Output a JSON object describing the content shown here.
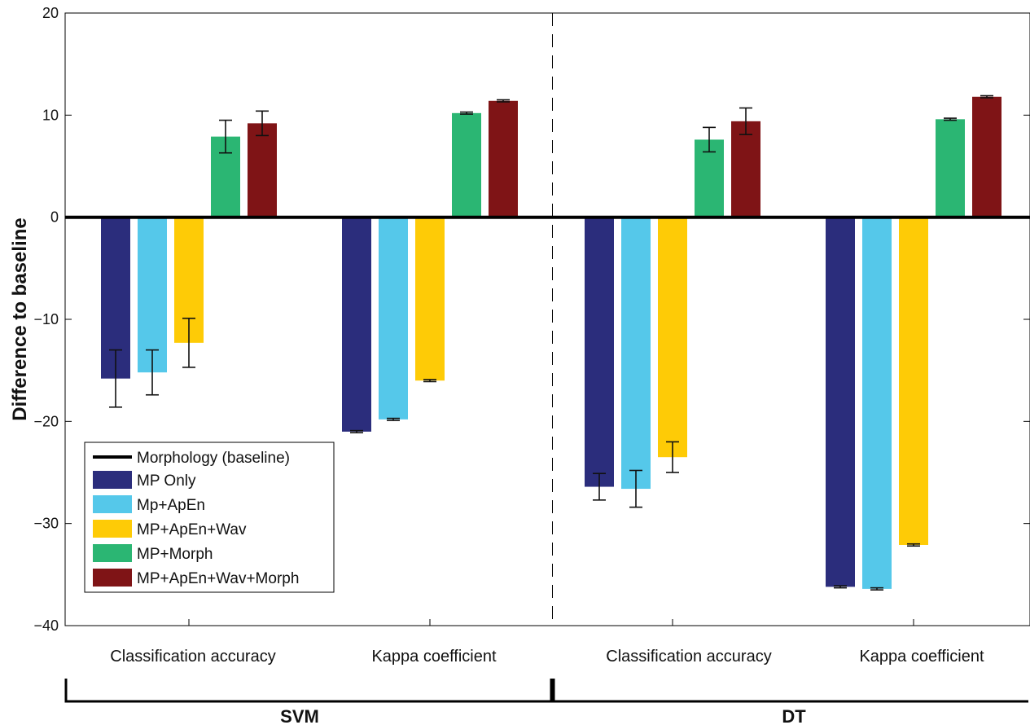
{
  "chart_data": {
    "type": "bar",
    "ylabel": "Difference to baseline",
    "ylim": [
      -40,
      20
    ],
    "yticks": [
      "20",
      "10",
      "0",
      "−10",
      "−20",
      "−30",
      "−40"
    ],
    "ytick_values": [
      20,
      10,
      0,
      -10,
      -20,
      -30,
      -40
    ],
    "categories": [
      "Classification accuracy",
      "Kappa coefficient",
      "Classification accuracy",
      "Kappa coefficient"
    ],
    "groups": [
      "SVM",
      "DT"
    ],
    "baseline_label": "Morphology (baseline)",
    "legend_position": "bottom-left",
    "grid": false,
    "series": [
      {
        "name": "MP Only",
        "color": "#2b2d7c",
        "values": [
          -15.8,
          -21.0,
          -26.4,
          -36.2
        ],
        "errors": [
          2.8,
          0.1,
          1.3,
          0.1
        ]
      },
      {
        "name": "Mp+ApEn",
        "color": "#55c8ea",
        "values": [
          -15.2,
          -19.8,
          -26.6,
          -36.4
        ],
        "errors": [
          2.2,
          0.1,
          1.8,
          0.1
        ]
      },
      {
        "name": "MP+ApEn+Wav",
        "color": "#fecb06",
        "values": [
          -12.3,
          -16.0,
          -23.5,
          -32.1
        ],
        "errors": [
          2.4,
          0.1,
          1.5,
          0.1
        ]
      },
      {
        "name": "MP+Morph",
        "color": "#2bb673",
        "values": [
          7.9,
          10.2,
          7.6,
          9.6
        ],
        "errors": [
          1.6,
          0.1,
          1.2,
          0.1
        ]
      },
      {
        "name": "MP+ApEn+Wav+Morph",
        "color": "#7f1416",
        "values": [
          9.2,
          11.4,
          9.4,
          11.8
        ],
        "errors": [
          1.2,
          0.1,
          1.3,
          0.1
        ]
      }
    ]
  }
}
